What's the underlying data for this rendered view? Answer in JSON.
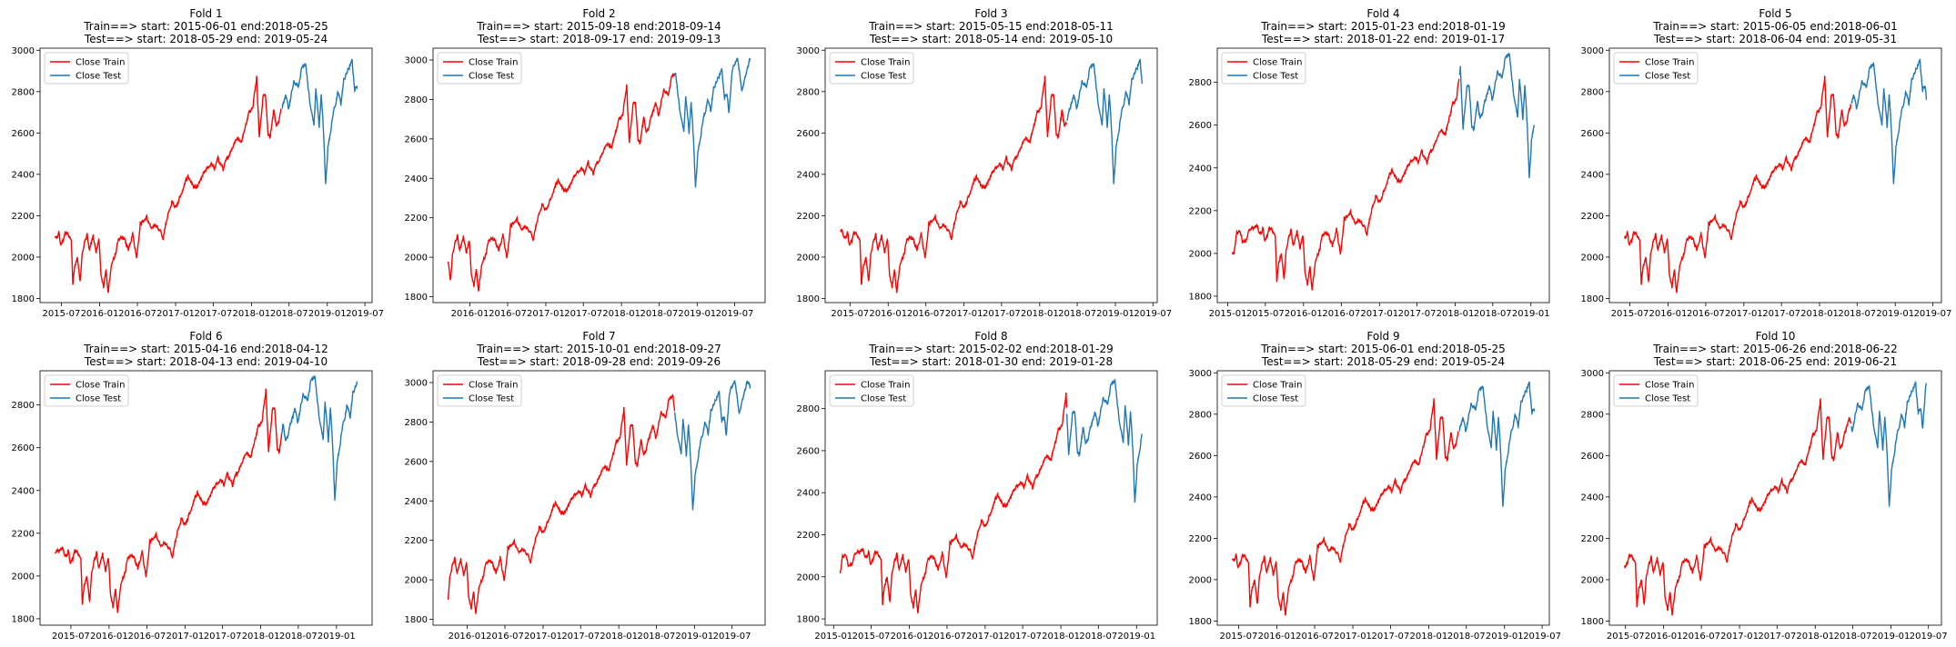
{
  "chart_data": [
    {
      "type": "line",
      "title": "Fold 1",
      "subtitle_train": "Train==> start: 2015-06-01 end:2018-05-25",
      "subtitle_test": "Test==> start: 2018-05-29 end: 2019-05-24",
      "train_range": [
        "2015-06-01",
        "2018-05-25"
      ],
      "test_range": [
        "2018-05-29",
        "2019-05-24"
      ],
      "x_ticks": [
        "2015-07",
        "2016-01",
        "2016-07",
        "2017-01",
        "2017-07",
        "2018-01",
        "2018-07",
        "2019-01",
        "2019-07"
      ],
      "y_ticks": [
        1800,
        2000,
        2200,
        2400,
        2600,
        2800,
        3000
      ],
      "ylim": [
        1780,
        3010
      ],
      "legend": [
        "Close Train",
        "Close Test"
      ],
      "legend_loc": "upper left",
      "series": [
        {
          "name": "Close Train",
          "color": "#ff0000"
        },
        {
          "name": "Close Test",
          "color": "#1f77b4"
        }
      ]
    },
    {
      "type": "line",
      "title": "Fold 2",
      "subtitle_train": "Train==> start: 2015-09-18 end:2018-09-14",
      "subtitle_test": "Test==> start: 2018-09-17 end: 2019-09-13",
      "train_range": [
        "2015-09-18",
        "2018-09-14"
      ],
      "test_range": [
        "2018-09-17",
        "2019-09-13"
      ],
      "x_ticks": [
        "2016-01",
        "2016-07",
        "2017-01",
        "2017-07",
        "2018-01",
        "2018-07",
        "2019-01",
        "2019-07"
      ],
      "y_ticks": [
        1800,
        2000,
        2200,
        2400,
        2600,
        2800,
        3000
      ],
      "ylim": [
        1770,
        3060
      ],
      "legend": [
        "Close Train",
        "Close Test"
      ],
      "legend_loc": "upper left",
      "series": [
        {
          "name": "Close Train",
          "color": "#ff0000"
        },
        {
          "name": "Close Test",
          "color": "#1f77b4"
        }
      ]
    },
    {
      "type": "line",
      "title": "Fold 3",
      "subtitle_train": "Train==> start: 2015-05-15 end:2018-05-11",
      "subtitle_test": "Test==> start: 2018-05-14 end: 2019-05-10",
      "train_range": [
        "2015-05-15",
        "2018-05-11"
      ],
      "test_range": [
        "2018-05-14",
        "2019-05-10"
      ],
      "x_ticks": [
        "2015-07",
        "2016-01",
        "2016-07",
        "2017-01",
        "2017-07",
        "2018-01",
        "2018-07",
        "2019-01",
        "2019-07"
      ],
      "y_ticks": [
        1800,
        2000,
        2200,
        2400,
        2600,
        2800,
        3000
      ],
      "ylim": [
        1780,
        3010
      ],
      "legend": [
        "Close Train",
        "Close Test"
      ],
      "legend_loc": "upper left",
      "series": [
        {
          "name": "Close Train",
          "color": "#ff0000"
        },
        {
          "name": "Close Test",
          "color": "#1f77b4"
        }
      ]
    },
    {
      "type": "line",
      "title": "Fold 4",
      "subtitle_train": "Train==> start: 2015-01-23 end:2018-01-19",
      "subtitle_test": "Test==> start: 2018-01-22 end: 2019-01-17",
      "train_range": [
        "2015-01-23",
        "2018-01-19"
      ],
      "test_range": [
        "2018-01-22",
        "2019-01-17"
      ],
      "x_ticks": [
        "2015-01",
        "2015-07",
        "2016-01",
        "2016-07",
        "2017-01",
        "2017-07",
        "2018-01",
        "2018-07",
        "2019-01"
      ],
      "y_ticks": [
        1800,
        2000,
        2200,
        2400,
        2600,
        2800
      ],
      "ylim": [
        1770,
        2960
      ],
      "legend": [
        "Close Train",
        "Close Test"
      ],
      "legend_loc": "upper left",
      "series": [
        {
          "name": "Close Train",
          "color": "#ff0000"
        },
        {
          "name": "Close Test",
          "color": "#1f77b4"
        }
      ]
    },
    {
      "type": "line",
      "title": "Fold 5",
      "subtitle_train": "Train==> start: 2015-06-05 end:2018-06-01",
      "subtitle_test": "Test==> start: 2018-06-04 end: 2019-05-31",
      "train_range": [
        "2015-06-05",
        "2018-06-01"
      ],
      "test_range": [
        "2018-06-04",
        "2019-05-31"
      ],
      "x_ticks": [
        "2015-07",
        "2016-01",
        "2016-07",
        "2017-01",
        "2017-07",
        "2018-01",
        "2018-07",
        "2019-01",
        "2019-07"
      ],
      "y_ticks": [
        1800,
        2000,
        2200,
        2400,
        2600,
        2800,
        3000
      ],
      "ylim": [
        1780,
        3010
      ],
      "legend": [
        "Close Train",
        "Close Test"
      ],
      "legend_loc": "upper left",
      "series": [
        {
          "name": "Close Train",
          "color": "#ff0000"
        },
        {
          "name": "Close Test",
          "color": "#1f77b4"
        }
      ]
    },
    {
      "type": "line",
      "title": "Fold 6",
      "subtitle_train": "Train==> start: 2015-04-16 end:2018-04-12",
      "subtitle_test": "Test==> start: 2018-04-13 end: 2019-04-10",
      "train_range": [
        "2015-04-16",
        "2018-04-12"
      ],
      "test_range": [
        "2018-04-13",
        "2019-04-10"
      ],
      "x_ticks": [
        "2015-07",
        "2016-01",
        "2016-07",
        "2017-01",
        "2017-07",
        "2018-01",
        "2018-07",
        "2019-01"
      ],
      "y_ticks": [
        1800,
        2000,
        2200,
        2400,
        2600,
        2800
      ],
      "ylim": [
        1770,
        2960
      ],
      "legend": [
        "Close Train",
        "Close Test"
      ],
      "legend_loc": "upper left",
      "series": [
        {
          "name": "Close Train",
          "color": "#ff0000"
        },
        {
          "name": "Close Test",
          "color": "#1f77b4"
        }
      ]
    },
    {
      "type": "line",
      "title": "Fold 7",
      "subtitle_train": "Train==> start: 2015-10-01 end:2018-09-27",
      "subtitle_test": "Test==> start: 2018-09-28 end: 2019-09-26",
      "train_range": [
        "2015-10-01",
        "2018-09-27"
      ],
      "test_range": [
        "2018-09-28",
        "2019-09-26"
      ],
      "x_ticks": [
        "2016-01",
        "2016-07",
        "2017-01",
        "2017-07",
        "2018-01",
        "2018-07",
        "2019-01",
        "2019-07"
      ],
      "y_ticks": [
        1800,
        2000,
        2200,
        2400,
        2600,
        2800,
        3000
      ],
      "ylim": [
        1770,
        3060
      ],
      "legend": [
        "Close Train",
        "Close Test"
      ],
      "legend_loc": "upper left",
      "series": [
        {
          "name": "Close Train",
          "color": "#ff0000"
        },
        {
          "name": "Close Test",
          "color": "#1f77b4"
        }
      ]
    },
    {
      "type": "line",
      "title": "Fold 8",
      "subtitle_train": "Train==> start: 2015-02-02 end:2018-01-29",
      "subtitle_test": "Test==> start: 2018-01-30 end: 2019-01-28",
      "train_range": [
        "2015-02-02",
        "2018-01-29"
      ],
      "test_range": [
        "2018-01-30",
        "2019-01-28"
      ],
      "x_ticks": [
        "2015-01",
        "2015-07",
        "2016-01",
        "2016-07",
        "2017-01",
        "2017-07",
        "2018-01",
        "2018-07",
        "2019-01"
      ],
      "y_ticks": [
        1800,
        2000,
        2200,
        2400,
        2600,
        2800
      ],
      "ylim": [
        1770,
        2980
      ],
      "legend": [
        "Close Train",
        "Close Test"
      ],
      "legend_loc": "upper left",
      "series": [
        {
          "name": "Close Train",
          "color": "#ff0000"
        },
        {
          "name": "Close Test",
          "color": "#1f77b4"
        }
      ]
    },
    {
      "type": "line",
      "title": "Fold 9",
      "subtitle_train": "Train==> start: 2015-06-01 end:2018-05-25",
      "subtitle_test": "Test==> start: 2018-05-29 end: 2019-05-24",
      "train_range": [
        "2015-06-01",
        "2018-05-25"
      ],
      "test_range": [
        "2018-05-29",
        "2019-05-24"
      ],
      "x_ticks": [
        "2015-07",
        "2016-01",
        "2016-07",
        "2017-01",
        "2017-07",
        "2018-01",
        "2018-07",
        "2019-01",
        "2019-07"
      ],
      "y_ticks": [
        1800,
        2000,
        2200,
        2400,
        2600,
        2800,
        3000
      ],
      "ylim": [
        1780,
        3010
      ],
      "legend": [
        "Close Train",
        "Close Test"
      ],
      "legend_loc": "upper left",
      "series": [
        {
          "name": "Close Train",
          "color": "#ff0000"
        },
        {
          "name": "Close Test",
          "color": "#1f77b4"
        }
      ]
    },
    {
      "type": "line",
      "title": "Fold 10",
      "subtitle_train": "Train==> start: 2015-06-26 end:2018-06-22",
      "subtitle_test": "Test==> start: 2018-06-25 end: 2019-06-21",
      "train_range": [
        "2015-06-26",
        "2018-06-22"
      ],
      "test_range": [
        "2018-06-25",
        "2019-06-21"
      ],
      "x_ticks": [
        "2015-07",
        "2016-01",
        "2016-07",
        "2017-01",
        "2017-07",
        "2018-01",
        "2018-07",
        "2019-01",
        "2019-07"
      ],
      "y_ticks": [
        1800,
        2000,
        2200,
        2400,
        2600,
        2800,
        3000
      ],
      "ylim": [
        1780,
        3010
      ],
      "legend": [
        "Close Train",
        "Close Test"
      ],
      "legend_loc": "upper left",
      "series": [
        {
          "name": "Close Train",
          "color": "#ff0000"
        },
        {
          "name": "Close Test",
          "color": "#1f77b4"
        }
      ]
    }
  ],
  "price_path": [
    [
      "2015-01-02",
      2058
    ],
    [
      "2015-01-16",
      2019
    ],
    [
      "2015-01-30",
      1995
    ],
    [
      "2015-02-13",
      2096
    ],
    [
      "2015-02-27",
      2104
    ],
    [
      "2015-03-13",
      2053
    ],
    [
      "2015-03-27",
      2061
    ],
    [
      "2015-04-10",
      2102
    ],
    [
      "2015-04-24",
      2117
    ],
    [
      "2015-05-08",
      2116
    ],
    [
      "2015-05-22",
      2126
    ],
    [
      "2015-06-05",
      2092
    ],
    [
      "2015-06-19",
      2110
    ],
    [
      "2015-06-29",
      2057
    ],
    [
      "2015-07-10",
      2077
    ],
    [
      "2015-07-20",
      2128
    ],
    [
      "2015-08-05",
      2099
    ],
    [
      "2015-08-18",
      2096
    ],
    [
      "2015-08-25",
      1867
    ],
    [
      "2015-09-02",
      1948
    ],
    [
      "2015-09-16",
      1995
    ],
    [
      "2015-09-29",
      1884
    ],
    [
      "2015-10-09",
      2014
    ],
    [
      "2015-10-23",
      2075
    ],
    [
      "2015-11-03",
      2109
    ],
    [
      "2015-11-13",
      2023
    ],
    [
      "2015-12-01",
      2102
    ],
    [
      "2015-12-14",
      2021
    ],
    [
      "2015-12-29",
      2078
    ],
    [
      "2016-01-08",
      1922
    ],
    [
      "2016-01-20",
      1859
    ],
    [
      "2016-02-01",
      1940
    ],
    [
      "2016-02-11",
      1829
    ],
    [
      "2016-02-26",
      1948
    ],
    [
      "2016-03-15",
      2015
    ],
    [
      "2016-04-01",
      2072
    ],
    [
      "2016-04-20",
      2102
    ],
    [
      "2016-05-19",
      2040
    ],
    [
      "2016-06-08",
      2119
    ],
    [
      "2016-06-27",
      2000
    ],
    [
      "2016-07-15",
      2161
    ],
    [
      "2016-08-15",
      2190
    ],
    [
      "2016-09-09",
      2127
    ],
    [
      "2016-09-23",
      2164
    ],
    [
      "2016-10-14",
      2132
    ],
    [
      "2016-11-03",
      2088
    ],
    [
      "2016-11-18",
      2182
    ],
    [
      "2016-12-13",
      2271
    ],
    [
      "2016-12-30",
      2238
    ],
    [
      "2017-01-26",
      2296
    ],
    [
      "2017-02-15",
      2350
    ],
    [
      "2017-03-01",
      2395
    ],
    [
      "2017-03-27",
      2341
    ],
    [
      "2017-04-13",
      2328
    ],
    [
      "2017-05-16",
      2400
    ],
    [
      "2017-06-19",
      2453
    ],
    [
      "2017-07-07",
      2425
    ],
    [
      "2017-07-26",
      2477
    ],
    [
      "2017-08-18",
      2425
    ],
    [
      "2017-09-20",
      2508
    ],
    [
      "2017-10-20",
      2575
    ],
    [
      "2017-11-15",
      2564
    ],
    [
      "2017-12-18",
      2690
    ],
    [
      "2018-01-10",
      2748
    ],
    [
      "2018-01-26",
      2872
    ],
    [
      "2018-02-08",
      2581
    ],
    [
      "2018-02-26",
      2779
    ],
    [
      "2018-03-09",
      2786
    ],
    [
      "2018-03-23",
      2588
    ],
    [
      "2018-04-02",
      2581
    ],
    [
      "2018-04-18",
      2708
    ],
    [
      "2018-05-03",
      2629
    ],
    [
      "2018-05-25",
      2721
    ],
    [
      "2018-06-13",
      2776
    ],
    [
      "2018-06-28",
      2716
    ],
    [
      "2018-07-25",
      2846
    ],
    [
      "2018-08-15",
      2818
    ],
    [
      "2018-08-29",
      2914
    ],
    [
      "2018-09-20",
      2930
    ],
    [
      "2018-10-11",
      2728
    ],
    [
      "2018-10-29",
      2641
    ],
    [
      "2018-11-07",
      2813
    ],
    [
      "2018-11-23",
      2632
    ],
    [
      "2018-12-03",
      2790
    ],
    [
      "2018-12-14",
      2600
    ],
    [
      "2018-12-24",
      2351
    ],
    [
      "2019-01-04",
      2531
    ],
    [
      "2019-01-31",
      2704
    ],
    [
      "2019-02-22",
      2792
    ],
    [
      "2019-03-08",
      2743
    ],
    [
      "2019-03-21",
      2854
    ],
    [
      "2019-04-12",
      2907
    ],
    [
      "2019-04-30",
      2946
    ],
    [
      "2019-05-13",
      2812
    ],
    [
      "2019-05-24",
      2826
    ],
    [
      "2019-06-03",
      2744
    ],
    [
      "2019-06-20",
      2954
    ],
    [
      "2019-07-15",
      3014
    ],
    [
      "2019-08-05",
      2844
    ],
    [
      "2019-08-16",
      2889
    ],
    [
      "2019-09-13",
      3007
    ],
    [
      "2019-09-26",
      2977
    ]
  ]
}
